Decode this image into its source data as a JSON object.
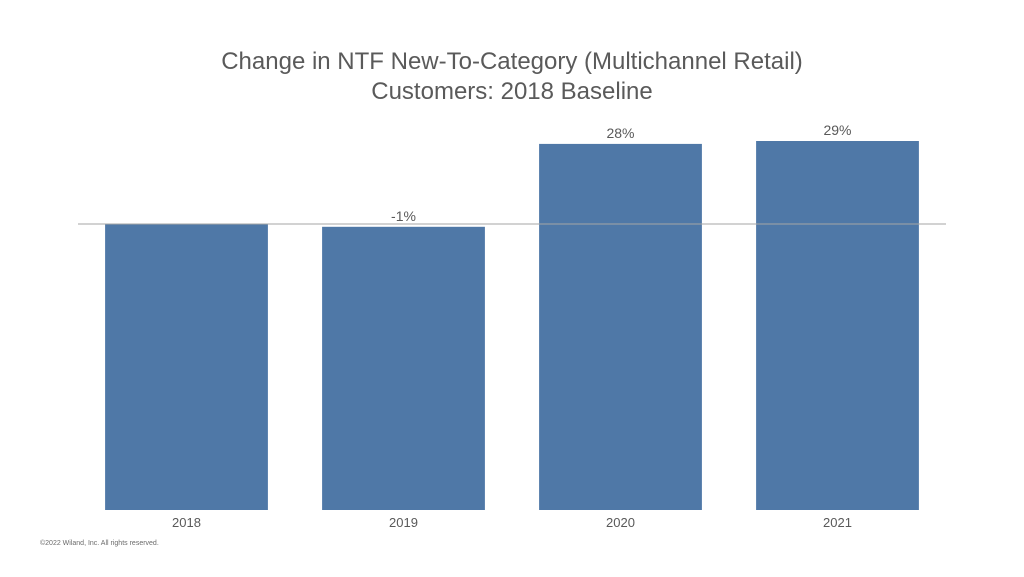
{
  "chart_data": {
    "type": "bar",
    "title_line1": "Change in NTF New-To-Category (Multichannel Retail)",
    "title_line2": "Customers: 2018 Baseline",
    "categories": [
      "2018",
      "2019",
      "2020",
      "2021"
    ],
    "values": [
      0,
      -1,
      28,
      29
    ],
    "data_labels": [
      "",
      "-1%",
      "28%",
      "29%"
    ],
    "ylim": [
      -100,
      29
    ],
    "baseline": 0,
    "grid": false,
    "legend": "none",
    "bar_color": "#4f78a7",
    "baseline_color": "#a6a6a6"
  },
  "footer": {
    "copyright": "©2022 Wiland, Inc. All rights reserved."
  }
}
